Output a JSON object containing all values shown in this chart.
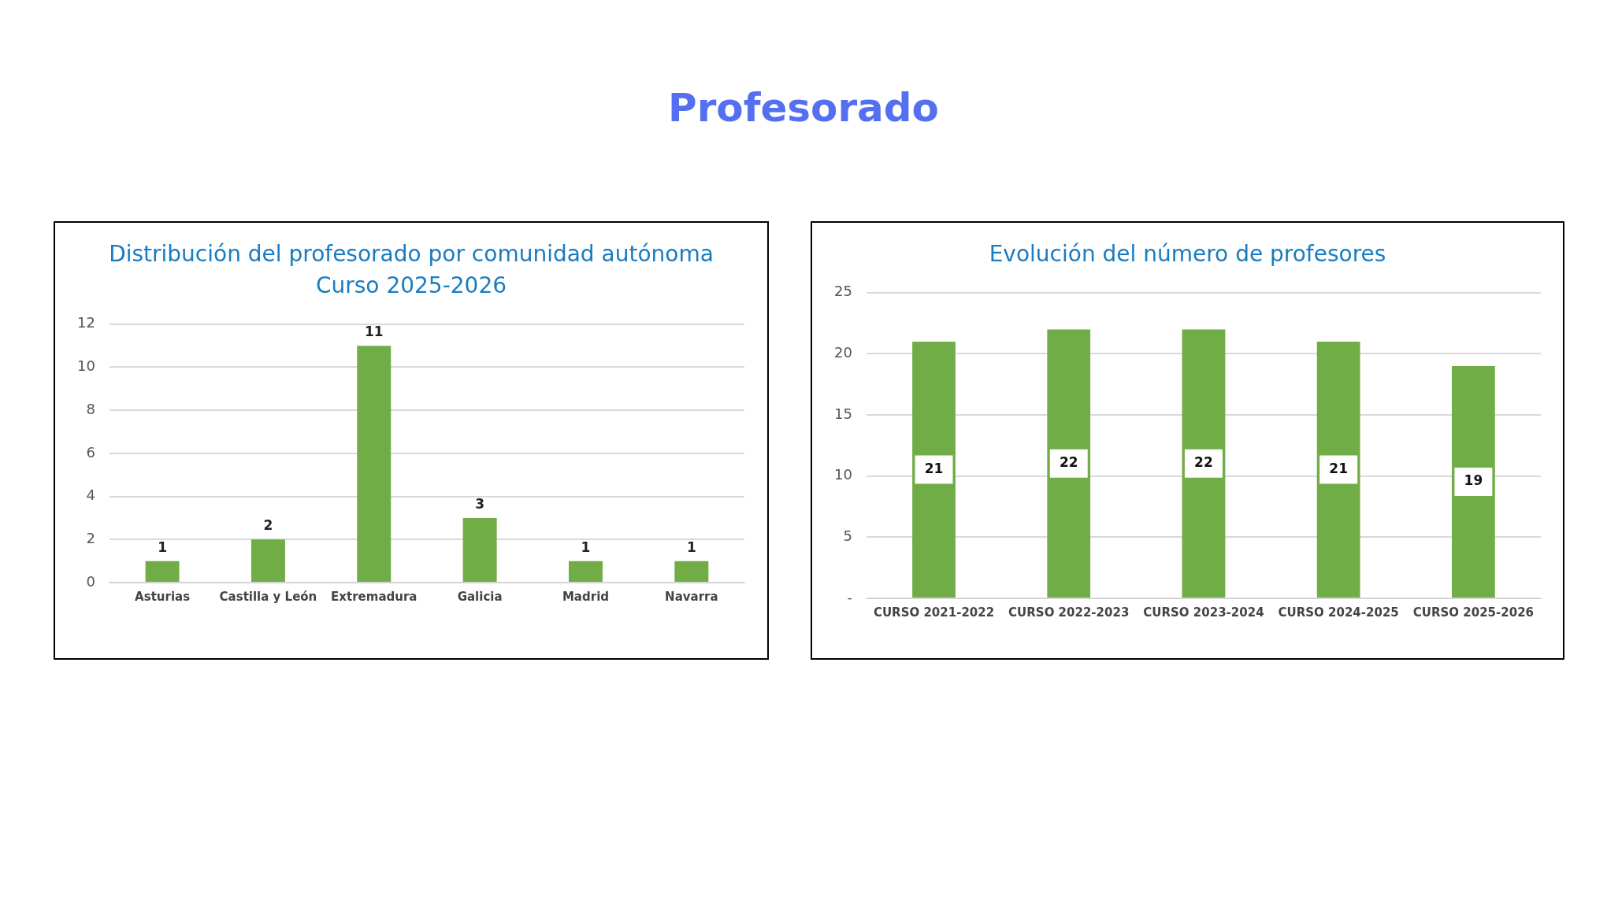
{
  "chart_data": [
    {
      "type": "bar",
      "title": "Distribución del profesorado por comunidad autónoma",
      "subtitle": "Curso 2025-2026",
      "annotations": [
        "Profesorado"
      ],
      "categories": [
        "Asturias",
        "Castilla y León",
        "Extremadura",
        "Galicia",
        "Madrid",
        "Navarra"
      ],
      "values": [
        1,
        2,
        11,
        3,
        1,
        1
      ],
      "color": "#70ad47",
      "ylim": [
        0,
        12
      ],
      "yticks": [
        0,
        2,
        4,
        6,
        8,
        10,
        12
      ],
      "grid": "y",
      "data_labels": true
    },
    {
      "type": "bar",
      "title": "Evolución del número de profesores",
      "categories": [
        "CURSO 2021-2022",
        "CURSO 2022-2023",
        "CURSO 2023-2024",
        "CURSO 2024-2025",
        "CURSO 2025-2026"
      ],
      "values": [
        21,
        22,
        22,
        21,
        19
      ],
      "color": "#70ad47",
      "ylim": [
        0,
        25
      ],
      "yticks": [
        {
          "value": 0,
          "label": "-"
        },
        5,
        10,
        15,
        20,
        25
      ],
      "grid": "y",
      "data_labels": true
    }
  ]
}
